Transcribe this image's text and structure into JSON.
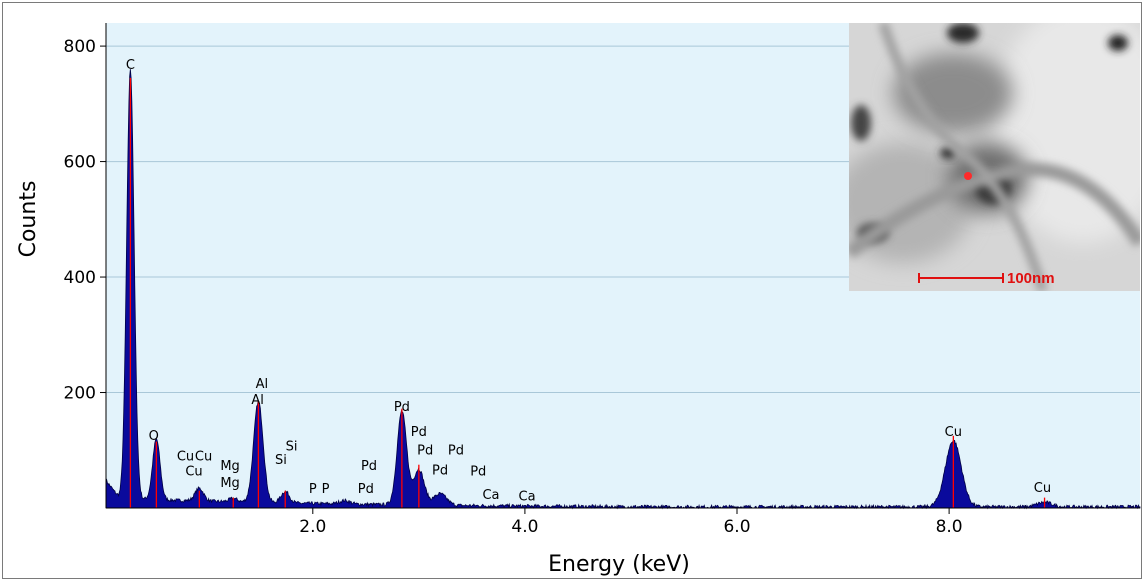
{
  "chart_data": {
    "type": "line",
    "title": "",
    "xlabel": "Energy (keV)",
    "ylabel": "Counts",
    "xlim": [
      0.05,
      9.8
    ],
    "ylim": [
      0,
      840
    ],
    "x_ticks": [
      2.0,
      4.0,
      6.0,
      8.0
    ],
    "x_tick_labels": [
      "2.0",
      "4.0",
      "6.0",
      "8.0"
    ],
    "y_ticks": [
      200,
      400,
      600,
      800
    ],
    "y_tick_labels": [
      "200",
      "400",
      "600",
      "800"
    ],
    "grid": "horizontal",
    "colors": {
      "plot_bg": "#e3f3fb",
      "fill": "#0a0a9c",
      "grid": "#a9c7d8",
      "peak_marker": "#ff0000"
    },
    "baseline": 14,
    "peaks": [
      {
        "x": 0.28,
        "h": 745,
        "w": 0.035
      },
      {
        "x": 0.525,
        "h": 105,
        "w": 0.035
      },
      {
        "x": 0.93,
        "h": 22,
        "w": 0.04
      },
      {
        "x": 1.25,
        "h": 6,
        "w": 0.04
      },
      {
        "x": 1.487,
        "h": 175,
        "w": 0.045
      },
      {
        "x": 1.74,
        "h": 20,
        "w": 0.04
      },
      {
        "x": 2.3,
        "h": 6,
        "w": 0.05
      },
      {
        "x": 2.84,
        "h": 162,
        "w": 0.045
      },
      {
        "x": 3.0,
        "h": 62,
        "w": 0.05
      },
      {
        "x": 3.2,
        "h": 20,
        "w": 0.06
      },
      {
        "x": 8.04,
        "h": 115,
        "w": 0.075
      },
      {
        "x": 8.9,
        "h": 8,
        "w": 0.07
      }
    ],
    "markers": [
      {
        "x": 0.28,
        "y": 745
      },
      {
        "x": 0.525,
        "y": 115
      },
      {
        "x": 0.93,
        "y": 30
      },
      {
        "x": 1.25,
        "y": 18
      },
      {
        "x": 1.487,
        "y": 185
      },
      {
        "x": 1.74,
        "y": 30
      },
      {
        "x": 2.84,
        "y": 172
      },
      {
        "x": 3.0,
        "y": 75
      },
      {
        "x": 8.04,
        "y": 125
      },
      {
        "x": 8.9,
        "y": 18
      }
    ],
    "peak_labels": [
      {
        "text": "C",
        "x": 0.28,
        "y": 760
      },
      {
        "text": "O",
        "x": 0.5,
        "y": 118
      },
      {
        "text": "Cu",
        "x": 0.8,
        "y": 82
      },
      {
        "text": "Cu",
        "x": 0.97,
        "y": 82
      },
      {
        "text": "Cu",
        "x": 0.88,
        "y": 56
      },
      {
        "text": "Mg",
        "x": 1.22,
        "y": 66
      },
      {
        "text": "Mg",
        "x": 1.22,
        "y": 36
      },
      {
        "text": "Al",
        "x": 1.52,
        "y": 208
      },
      {
        "text": "Al",
        "x": 1.48,
        "y": 180
      },
      {
        "text": "Si",
        "x": 1.8,
        "y": 100
      },
      {
        "text": "Si",
        "x": 1.7,
        "y": 76
      },
      {
        "text": "P",
        "x": 2.0,
        "y": 26
      },
      {
        "text": "P",
        "x": 2.12,
        "y": 26
      },
      {
        "text": "Pd",
        "x": 2.53,
        "y": 66
      },
      {
        "text": "Pd",
        "x": 2.5,
        "y": 26
      },
      {
        "text": "Pd",
        "x": 2.84,
        "y": 168
      },
      {
        "text": "Pd",
        "x": 3.0,
        "y": 125
      },
      {
        "text": "Pd",
        "x": 3.06,
        "y": 93
      },
      {
        "text": "Pd",
        "x": 3.35,
        "y": 93
      },
      {
        "text": "Pd",
        "x": 3.2,
        "y": 58
      },
      {
        "text": "Pd",
        "x": 3.56,
        "y": 56
      },
      {
        "text": "Ca",
        "x": 3.68,
        "y": 16
      },
      {
        "text": "Ca",
        "x": 4.02,
        "y": 13
      },
      {
        "text": "Cu",
        "x": 8.04,
        "y": 125
      },
      {
        "text": "Cu",
        "x": 8.88,
        "y": 28
      }
    ],
    "inset": {
      "scale_bar_label": "100nm"
    }
  }
}
